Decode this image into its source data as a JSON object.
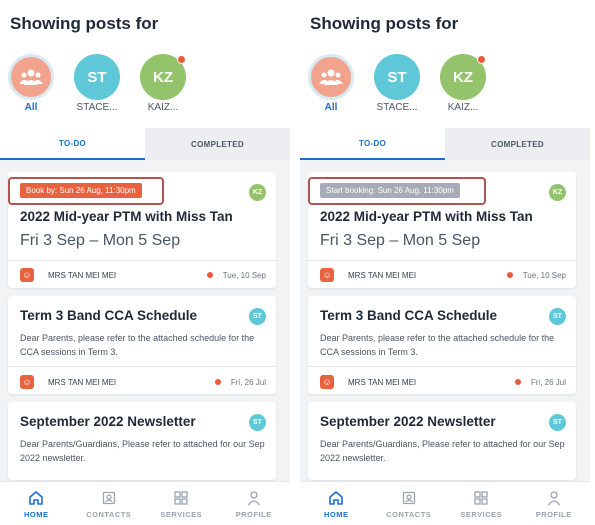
{
  "screens": [
    {
      "heading": "Showing posts for",
      "filters": [
        {
          "label": "All",
          "initials": ""
        },
        {
          "label": "STACE...",
          "initials": "ST"
        },
        {
          "label": "KAIZ...",
          "initials": "KZ"
        }
      ],
      "tabs": {
        "todo": "TO-DO",
        "completed": "COMPLETED"
      },
      "posts": [
        {
          "chip": "Book by: Sun 26 Aug, 11:30pm",
          "tag": "KZ",
          "title": "2022 Mid-year PTM with Miss Tan",
          "subtitle": "Fri 3 Sep – Mon 5 Sep",
          "sender": "MRS TAN MEI MEI",
          "date": "Tue, 10 Sep"
        },
        {
          "tag": "ST",
          "title": "Term 3 Band CCA Schedule",
          "body": "Dear Parents, please refer to the attached schedule for the CCA sessions in Term 3.",
          "sender": "MRS TAN MEI MEI",
          "date": "Fri, 26 Jul"
        },
        {
          "tag": "ST",
          "title": "September 2022 Newsletter",
          "body": "Dear Parents/Guardians, Please refer to attached for our Sep 2022 newsletter."
        }
      ],
      "nav": [
        "HOME",
        "CONTACTS",
        "SERVICES",
        "PROFILE"
      ]
    },
    {
      "heading": "Showing posts for",
      "filters": [
        {
          "label": "All",
          "initials": ""
        },
        {
          "label": "STACE...",
          "initials": "ST"
        },
        {
          "label": "KAIZ...",
          "initials": "KZ"
        }
      ],
      "tabs": {
        "todo": "TO-DO",
        "completed": "COMPLETED"
      },
      "posts": [
        {
          "chip": "Start booking: Sun 26 Aug, 11:30pm",
          "tag": "KZ",
          "title": "2022 Mid-year PTM with Miss Tan",
          "subtitle": "Fri 3 Sep – Mon 5 Sep",
          "sender": "MRS TAN MEI MEI",
          "date": "Tue, 10 Sep"
        },
        {
          "tag": "ST",
          "title": "Term 3 Band CCA Schedule",
          "body": "Dear Parents, please refer to the attached schedule for the CCA sessions in Term 3.",
          "sender": "MRS TAN MEI MEI",
          "date": "Fri, 26 Jul"
        },
        {
          "tag": "ST",
          "title": "September 2022 Newsletter",
          "body": "Dear Parents/Guardians, Please refer to attached for our Sep 2022 newsletter."
        }
      ],
      "nav": [
        "HOME",
        "CONTACTS",
        "SERVICES",
        "PROFILE"
      ]
    }
  ],
  "colors": {
    "accent": "#1c6ed6",
    "chip_due": "#e8623f",
    "chip_upcoming": "#a6acb5",
    "highlight": "#b05552",
    "unread": "#ea5a38"
  },
  "icons": [
    "people-icon",
    "home-icon",
    "contacts-icon",
    "services-icon",
    "profile-icon",
    "school-logo-icon"
  ]
}
